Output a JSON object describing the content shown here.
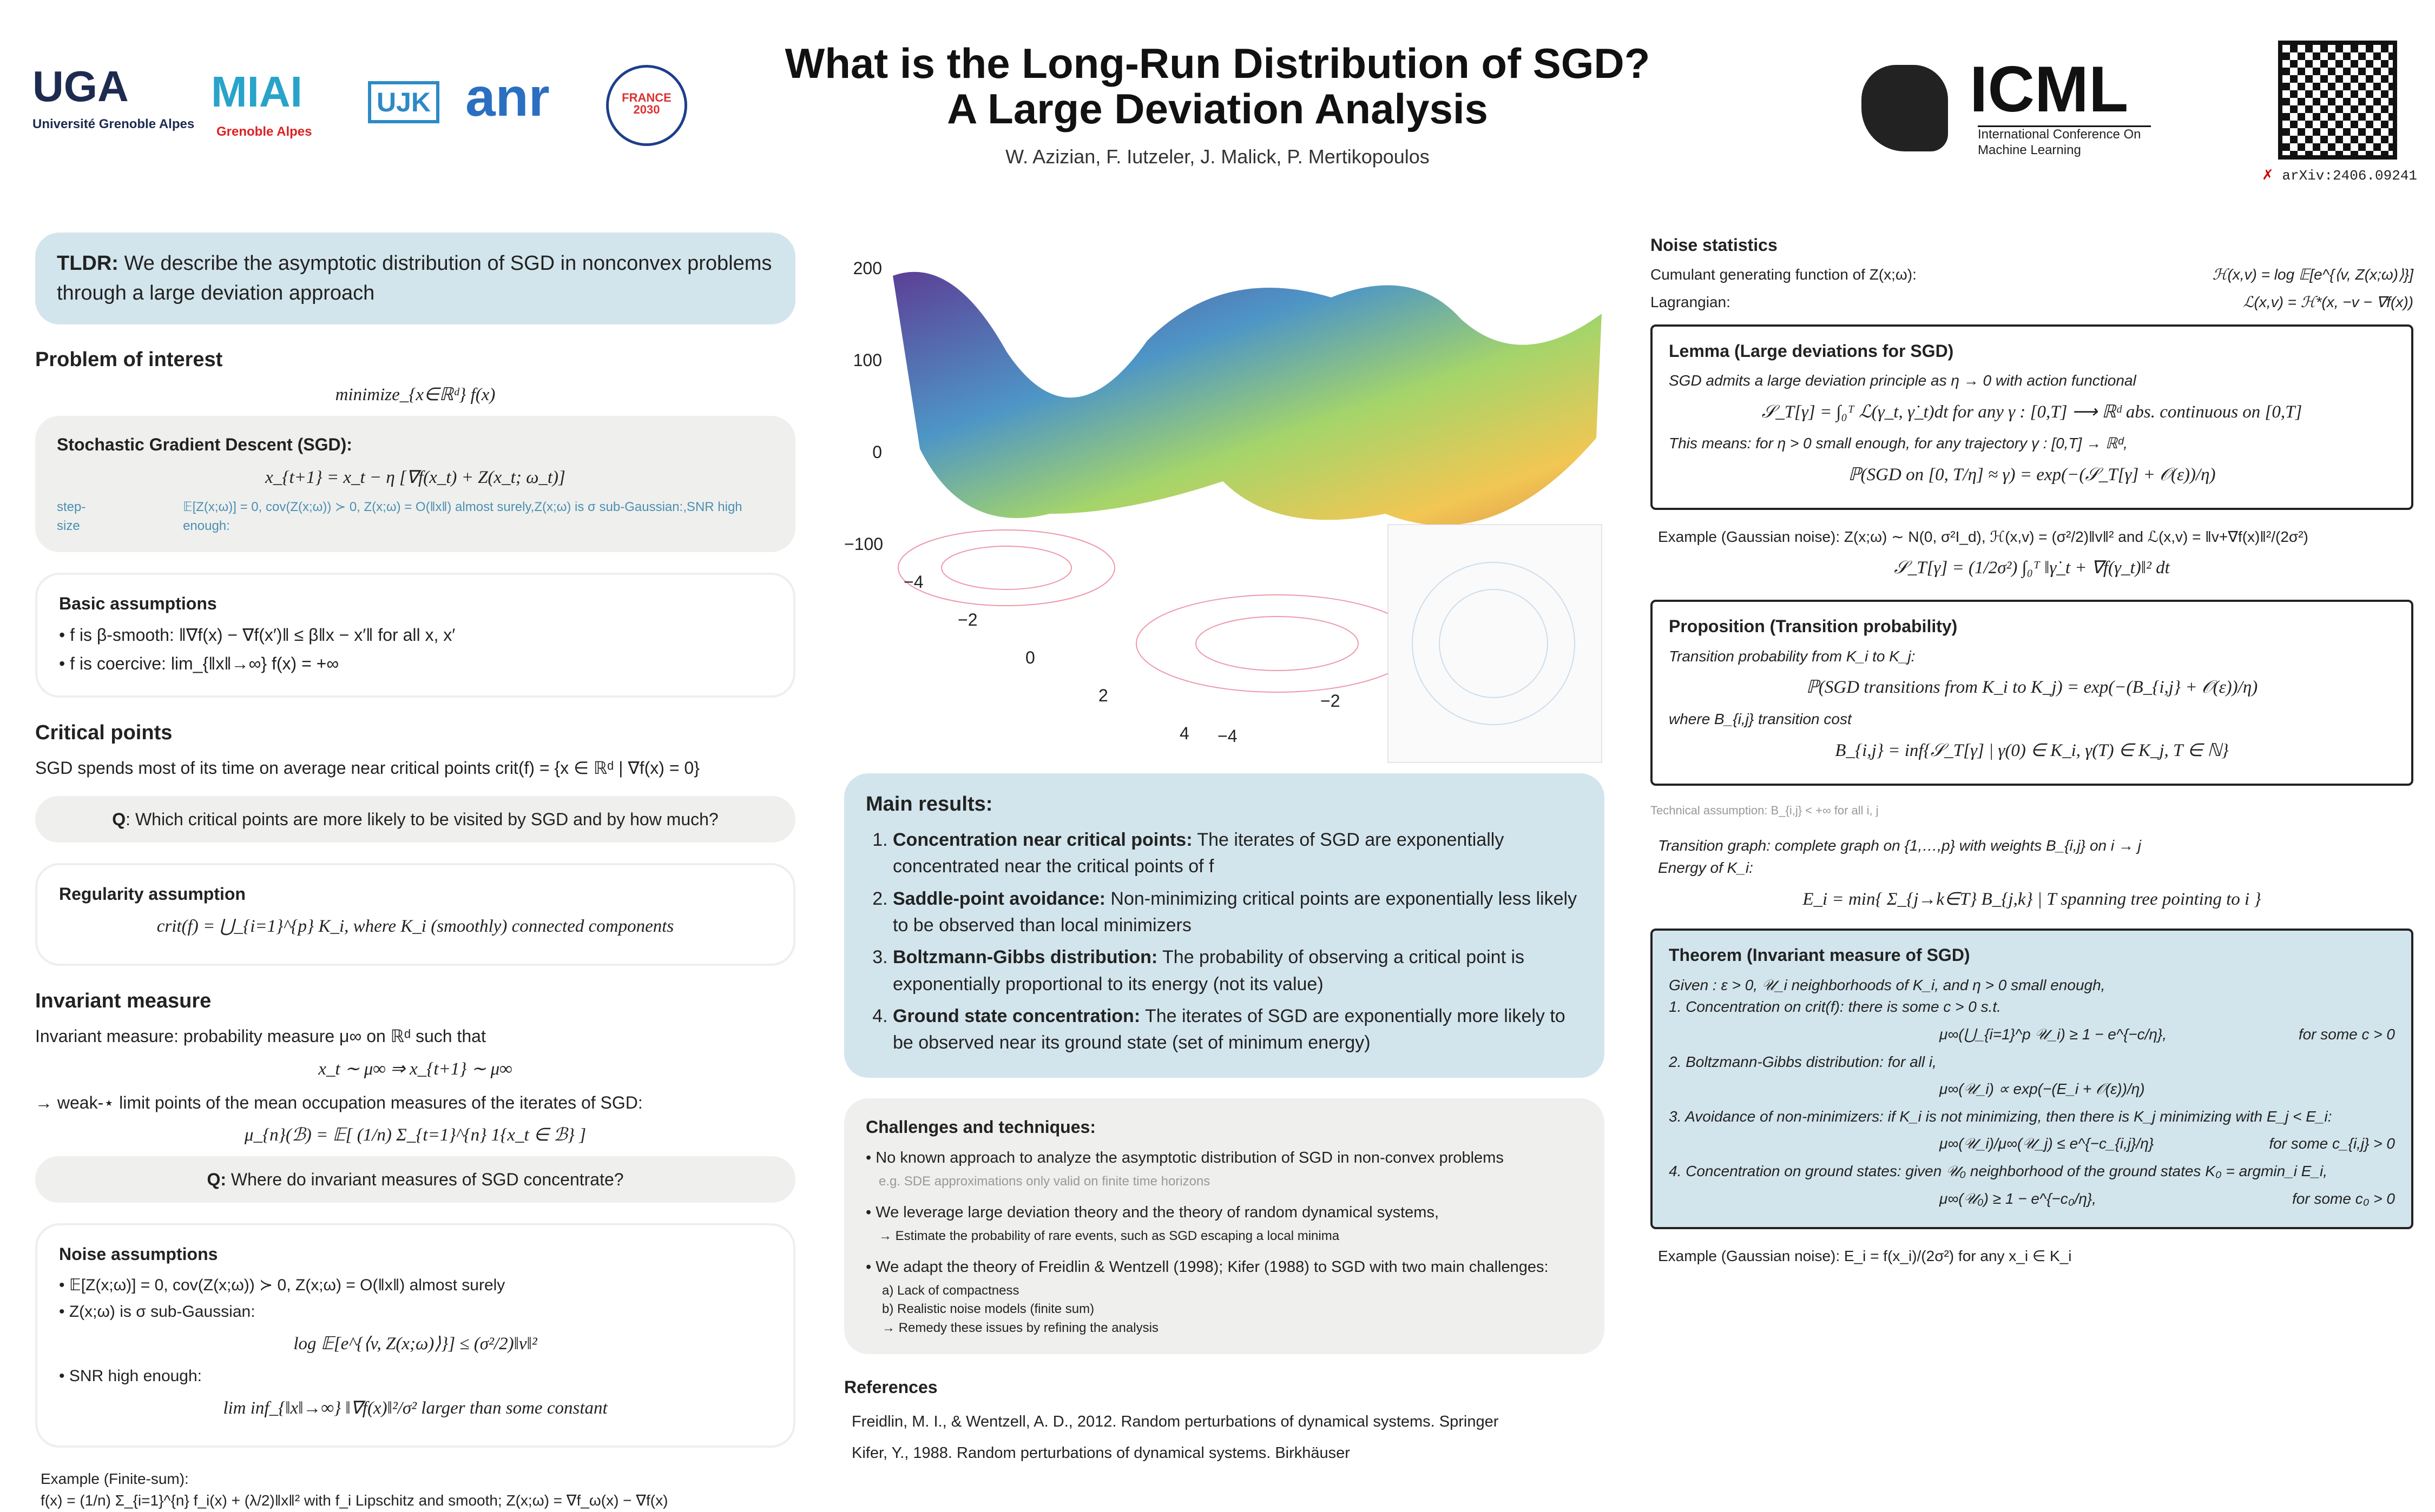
{
  "header": {
    "logos": [
      "UGA",
      "Université Grenoble Alpes",
      "MIAI",
      "Grenoble Alpes",
      "UJK",
      "anr",
      "FRANCE 2030",
      "ICML",
      "International Conference On Machine Learning"
    ],
    "title_line1": "What is the Long-Run Distribution of SGD?",
    "title_line2": "A Large Deviation Analysis",
    "authors": "W. Azizian, F. Iutzeler, J. Malick, P. Mertikopoulos",
    "arxiv": "arXiv:2406.09241"
  },
  "left": {
    "tldr_label": "TLDR:",
    "tldr": "We describe the asymptotic distribution of SGD in nonconvex problems through a large deviation approach",
    "problem_heading": "Problem of interest",
    "problem_math": "minimize_{x∈ℝᵈ} f(x)",
    "sgd_heading": "Stochastic Gradient Descent (SGD):",
    "sgd_math": "x_{t+1} = x_t − η [∇f(x_t) + Z(x_t; ω_t)]",
    "step_size": "step-size",
    "noise": [
      "𝔼[Z(x;ω)] = 0, cov(Z(x;ω)) ≻ 0, Z(x;ω) = O(‖x‖) almost surely",
      "Z(x;ω) is σ sub-Gaussian:",
      "SNR high enough:"
    ],
    "basic_heading": "Basic assumptions",
    "basic": [
      "f is β-smooth:   ‖∇f(x) − ∇f(x′)‖ ≤ β‖x − x′‖   for all x, x′",
      "f is coercive: lim_{‖x‖→∞} f(x) = +∞"
    ],
    "crit_heading": "Critical points",
    "crit_text": "SGD spends most of its time on average near critical points   crit(f) = {x ∈ ℝᵈ | ∇f(x) = 0}",
    "q1_label": "Q",
    "q1": ": Which critical points are more likely to be visited by SGD and by how much?",
    "reg_heading": "Regularity assumption",
    "reg_math": "crit(f) = ⋃_{i=1}^{p} K_i,   where K_i (smoothly) connected components",
    "inv_heading": "Invariant measure",
    "inv_text": "Invariant measure: probability measure μ∞ on ℝᵈ such that",
    "inv_math": "x_t ∼ μ∞    ⇒    x_{t+1} ∼ μ∞",
    "inv_text2": "→ weak-⋆ limit points of the mean occupation measures of the iterates of SGD:",
    "inv_math2": "μ_{n}(ℬ) = 𝔼[ (1/n) Σ_{t=1}^{n} 1{x_t ∈ ℬ} ]",
    "q2_label": "Q:",
    "q2": "Where do invariant measures of SGD concentrate?",
    "noise_heading": "Noise assumptions",
    "noise_math1": "log 𝔼[e^{⟨v, Z(x;ω)⟩}] ≤ (σ²/2)‖v‖²",
    "noise_math2": "lim inf_{‖x‖→∞} ‖∇f(x)‖²/σ²    larger than some constant",
    "example_label": "Example (Finite-sum):",
    "example": "f(x) = (1/n) Σ_{i=1}^{n} f_i(x) + (λ/2)‖x‖²  with f_i Lipschitz and smooth;  Z(x;ω) = ∇f_ω(x) − ∇f(x)"
  },
  "mid": {
    "figure_ticks": {
      "z": [
        "200",
        "100",
        "0",
        "−100"
      ],
      "x": [
        "−4",
        "−2",
        "0",
        "2",
        "4"
      ],
      "y": [
        "−4",
        "−2"
      ]
    },
    "main_heading": "Main results:",
    "results": [
      {
        "title": "Concentration near critical points:",
        "text": "The iterates of SGD are exponentially concentrated near the critical points of f"
      },
      {
        "title": "Saddle-point avoidance:",
        "text": "Non-minimizing critical points are exponentially less likely to be observed than local minimizers"
      },
      {
        "title": "Boltzmann-Gibbs distribution:",
        "text": "The probability of observing a critical point is exponentially proportional to its energy (not its value)"
      },
      {
        "title": "Ground state concentration:",
        "text": "The iterates of SGD are exponentially more likely to be observed near its ground state (set of minimum energy)"
      }
    ],
    "challenges_heading": "Challenges and techniques:",
    "c1": "No known approach to analyze the asymptotic distribution of SGD in non-convex problems",
    "c1_sub": "e.g. SDE approximations only valid on finite time horizons",
    "c2": "We leverage large deviation theory and the theory of random dynamical systems,",
    "c2_sub": "→ Estimate the probability of rare events, such as SGD escaping a local minima",
    "c3": "We adapt the theory of Freidlin & Wentzell (1998); Kifer (1988) to SGD with two main challenges:",
    "c3_subs": [
      "a) Lack of compactness",
      "b) Realistic noise models (finite sum)",
      "→ Remedy these issues by refining the analysis"
    ],
    "refs_heading": "References",
    "ref1": "Freidlin, M. I., & Wentzell, A. D., 2012. Random perturbations of dynamical systems. Springer",
    "ref2": "Kifer, Y., 1988. Random perturbations of dynamical systems. Birkhäuser"
  },
  "right": {
    "noise_stats": "Noise statistics",
    "cgf_label": "Cumulant generating function of Z(x;ω):",
    "cgf": "ℋ(x,v) = log 𝔼[e^{⟨v, Z(x;ω)⟩}]",
    "lag_label": "Lagrangian:",
    "lag": "ℒ(x,v) = ℋ*(x, −v − ∇f(x))",
    "lemma_title": "Lemma (Large deviations for SGD)",
    "lemma_text": "SGD admits a large deviation principle as η → 0 with action functional",
    "lemma_math": "𝒮_T[γ] = ∫₀ᵀ ℒ(γ_t, γ̇_t)dt  for any γ : [0,T] ⟶ ℝᵈ abs. continuous on [0,T]",
    "lemma_text2": "This means: for η > 0 small enough, for any trajectory γ : [0,T] → ℝᵈ,",
    "lemma_math2": "ℙ(SGD on [0, T/η] ≈ γ) = exp(−(𝒮_T[γ] + 𝒪(ε))/η)",
    "gauss_example": "Example (Gaussian noise):  Z(x;ω) ∼ N(0, σ²I_d), ℋ(x,v) = (σ²/2)‖v‖² and ℒ(x,v) = ‖v+∇f(x)‖²/(2σ²)",
    "gauss_math": "𝒮_T[γ] = (1/2σ²) ∫₀ᵀ ‖γ̇_t + ∇f(γ_t)‖² dt",
    "prop_title": "Proposition (Transition probability)",
    "prop_text": "Transition probability from K_i to K_j:",
    "prop_math": "ℙ(SGD transitions from K_i to K_j) = exp(−(B_{i,j} + 𝒪(ε))/η)",
    "prop_text2": "where B_{i,j} transition cost",
    "prop_math2": "B_{i,j} = inf{𝒮_T[γ] | γ(0) ∈ K_i, γ(T) ∈ K_j, T ∈ ℕ}",
    "tech": "Technical assumption: B_{i,j} < +∞ for all i, j",
    "graph": "Transition graph: complete graph on {1,…,p} with weights B_{i,j} on i → j",
    "energy": "Energy of K_i:",
    "energy_math": "E_i = min{ Σ_{j→k∈T} B_{j,k} | T spanning tree pointing to i }",
    "thm_title": "Theorem (Invariant measure of SGD)",
    "thm_given": "Given : ε > 0, 𝒰_i neighborhoods of K_i, and η > 0 small enough,",
    "thm_items": [
      {
        "text": "1. Concentration on crit(f): there is some c > 0 s.t.",
        "math": "μ∞(⋃_{i=1}^p 𝒰_i) ≥ 1 − e^{−c/η},",
        "cond": "for some c > 0"
      },
      {
        "text": "2. Boltzmann-Gibbs distribution: for all i,",
        "math": "μ∞(𝒰_i) ∝ exp(−(E_i + 𝒪(ε))/η)",
        "cond": ""
      },
      {
        "text": "3. Avoidance of non-minimizers: if K_i is not minimizing, then there is K_j minimizing with E_j < E_i:",
        "math": "μ∞(𝒰_i)/μ∞(𝒰_j) ≤ e^{−c_{i,j}/η}",
        "cond": "for some c_{i,j} > 0"
      },
      {
        "text": "4. Concentration on ground states: given 𝒰₀ neighborhood of the ground states K₀ = argmin_i E_i,",
        "math": "μ∞(𝒰₀) ≥ 1 − e^{−c₀/η},",
        "cond": "for some c₀ > 0"
      }
    ],
    "gauss_energy": "Example (Gaussian noise): E_i = f(x_i)/(2σ²) for any x_i ∈ K_i"
  }
}
